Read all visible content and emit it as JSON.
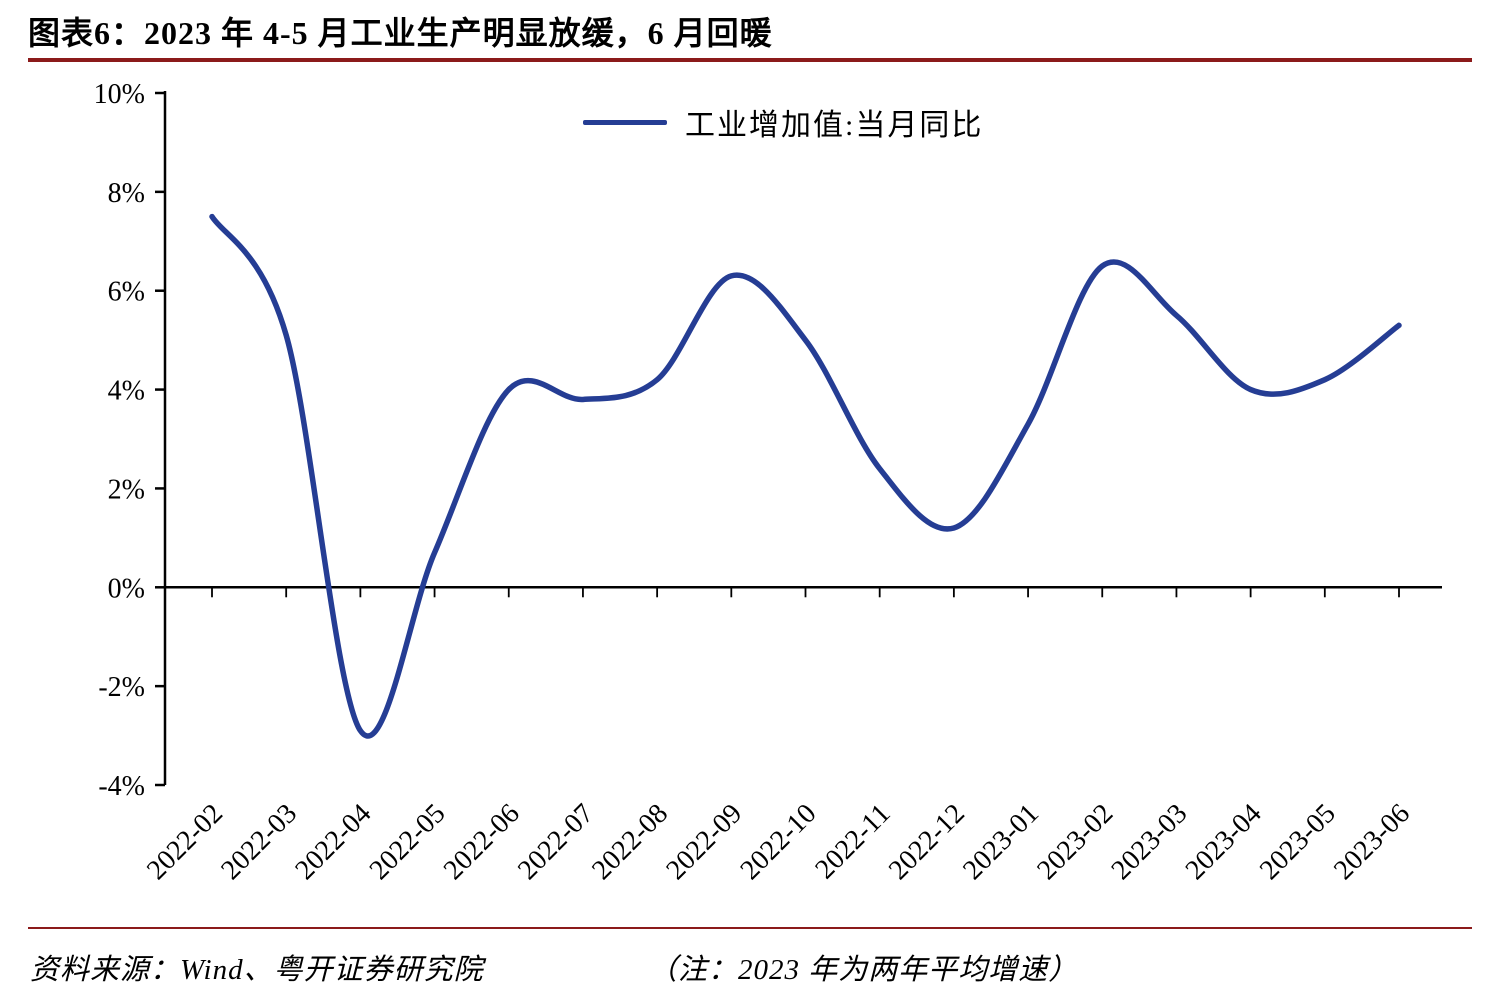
{
  "header": {
    "title": "图表6：2023 年 4-5 月工业生产明显放缓，6 月回暖"
  },
  "chart_data": {
    "type": "line",
    "title": "图表6：2023 年 4-5 月工业生产明显放缓，6 月回暖",
    "legend": "工业增加值:当月同比",
    "legend_position": "top-center",
    "x": [
      "2022-02",
      "2022-03",
      "2022-04",
      "2022-05",
      "2022-06",
      "2022-07",
      "2022-08",
      "2022-09",
      "2022-10",
      "2022-11",
      "2022-12",
      "2023-01",
      "2023-02",
      "2023-03",
      "2023-04",
      "2023-05",
      "2023-06"
    ],
    "series": [
      {
        "name": "工业增加值:当月同比",
        "values": [
          7.5,
          5.1,
          -2.9,
          0.7,
          4.0,
          3.8,
          4.2,
          6.3,
          5.0,
          2.4,
          1.2,
          3.3,
          6.5,
          5.5,
          4.0,
          4.2,
          5.3
        ]
      }
    ],
    "ylim": [
      -4,
      10
    ],
    "yticks": [
      10,
      8,
      6,
      4,
      2,
      0,
      -2,
      -4
    ],
    "ytick_suffix": "%",
    "grid": false,
    "smooth": true,
    "line_color": "#253D94"
  },
  "footer": {
    "source": "资料来源：Wind、粤开证券研究院",
    "note": "（注：2023 年为两年平均增速）"
  },
  "colors": {
    "rule": "#8B1A1A",
    "axis": "#000000",
    "background": "#FFFFFF"
  }
}
